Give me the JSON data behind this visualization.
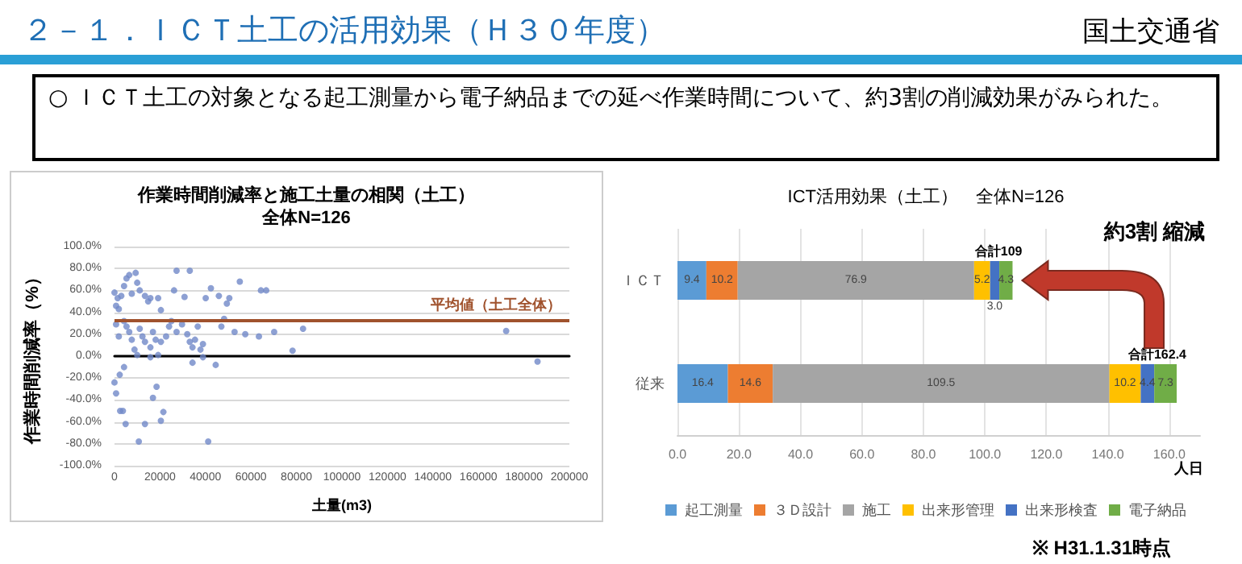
{
  "chart_data": [
    {
      "type": "other",
      "title": "２－１．ＩＣＴ土工の活用効果（Ｈ３０年度）",
      "annotations": [
        "国土交通省",
        "○ ＩＣＴ土工の対象となる起工測量から電子納品までの延べ作業時間について、約3割の削減効果がみられた。"
      ]
    },
    {
      "type": "scatter",
      "title": "作業時間削減率と施工土量の相関（土工）",
      "subtitle": "全体N=126",
      "xlabel": "土量(m3)",
      "ylabel": "作業時間削減率（%）",
      "color": "#7088c8",
      "marker": "circle",
      "grid": "y",
      "legend": false,
      "xlim": [
        0,
        200000
      ],
      "xticks": [
        0,
        20000,
        40000,
        60000,
        80000,
        100000,
        120000,
        140000,
        160000,
        180000,
        200000
      ],
      "ylim": [
        -100,
        100
      ],
      "yticks": [
        {
          "value": -100,
          "label": "-100.0%"
        },
        {
          "value": -80,
          "label": "-80.0%"
        },
        {
          "value": -60,
          "label": "-60.0%"
        },
        {
          "value": -40,
          "label": "-40.0%"
        },
        {
          "value": -20,
          "label": "-20.0%"
        },
        {
          "value": 0,
          "label": "0.0%"
        },
        {
          "value": 20,
          "label": "20.0%"
        },
        {
          "value": 40,
          "label": "40.0%"
        },
        {
          "value": 60,
          "label": "60.0%"
        },
        {
          "value": 80,
          "label": "80.0%"
        },
        {
          "value": 100,
          "label": "100.0%"
        }
      ],
      "ref_lines": [
        {
          "axis": "y",
          "value": 33,
          "label": "平均値（土工全体）",
          "color": "#a0522d"
        }
      ],
      "x": [
        0,
        700,
        1900,
        1400,
        3000,
        4200,
        5300,
        6500,
        9300,
        10000,
        7600,
        11100,
        13400,
        14800,
        15800,
        27300,
        33100,
        26200,
        30800,
        20400,
        19200,
        700,
        1900,
        4200,
        5300,
        6500,
        7600,
        8800,
        11100,
        12300,
        13400,
        15800,
        16900,
        18100,
        20400,
        22700,
        24000,
        25000,
        27300,
        29700,
        32000,
        33100,
        34300,
        35400,
        36600,
        37800,
        38900,
        42400,
        40100,
        45900,
        49400,
        50500,
        55100,
        64400,
        66700,
        52800,
        57500,
        63500,
        70200,
        82900,
        78300,
        44500,
        48200,
        47000,
        172200,
        186000,
        0,
        700,
        2500,
        3700,
        4900,
        10700,
        13400,
        16900,
        18500,
        21500,
        20400,
        41200,
        2300,
        4200,
        34300,
        15800,
        19200,
        10000,
        38900
      ],
      "values": [
        58,
        46,
        43,
        53,
        55,
        64,
        71,
        74,
        76,
        67,
        57,
        60,
        55,
        50,
        53,
        78,
        78,
        60,
        54,
        42,
        53,
        29,
        18,
        32,
        27,
        22,
        15,
        6,
        25,
        18,
        13,
        8,
        22,
        15,
        13,
        18,
        27,
        32,
        22,
        29,
        20,
        13,
        8,
        15,
        27,
        6,
        11,
        62,
        53,
        55,
        48,
        53,
        68,
        60,
        60,
        22,
        20,
        18,
        22,
        25,
        5,
        -8,
        34,
        27,
        23,
        -5,
        -24,
        -34,
        -50,
        -50,
        -62,
        -78,
        -62,
        -38,
        -28,
        -51,
        -59,
        -78,
        -17,
        -10,
        -6,
        -1,
        1,
        1,
        -1
      ]
    },
    {
      "type": "bar",
      "orientation": "horizontal",
      "stacked": true,
      "title": "ICT活用効果（土工）　全体N=126",
      "xlabel": "人日",
      "legend": "bottom",
      "grid": "x",
      "categories": [
        "ＩＣＴ",
        "従来"
      ],
      "xlim": [
        0,
        170
      ],
      "xticks": [
        {
          "value": 0,
          "label": "0.0"
        },
        {
          "value": 20,
          "label": "20.0"
        },
        {
          "value": 40,
          "label": "40.0"
        },
        {
          "value": 60,
          "label": "60.0"
        },
        {
          "value": 80,
          "label": "80.0"
        },
        {
          "value": 100,
          "label": "100.0"
        },
        {
          "value": 120,
          "label": "120.0"
        },
        {
          "value": 140,
          "label": "140.0"
        },
        {
          "value": 160,
          "label": "160.0"
        }
      ],
      "series": [
        {
          "name": "起工測量",
          "color": "#5b9bd5",
          "values": [
            9.4,
            16.4
          ],
          "value_labels": [
            "9.4",
            "16.4"
          ]
        },
        {
          "name": "３Ｄ設計",
          "color": "#ed7d31",
          "values": [
            10.2,
            14.6
          ],
          "value_labels": [
            "10.2",
            "14.6"
          ]
        },
        {
          "name": "施工",
          "color": "#a5a5a5",
          "values": [
            76.9,
            109.5
          ],
          "value_labels": [
            "76.9",
            "109.5"
          ]
        },
        {
          "name": "出来形管理",
          "color": "#ffc000",
          "values": [
            5.2,
            10.2
          ],
          "value_labels": [
            "5.2",
            "10.2"
          ]
        },
        {
          "name": "出来形検査",
          "color": "#4472c4",
          "values": [
            3.0,
            4.4
          ],
          "value_labels": [
            "3.0",
            "4.4"
          ]
        },
        {
          "name": "電子納品",
          "color": "#70ad47",
          "values": [
            4.3,
            7.3
          ],
          "value_labels": [
            "4.3",
            "7.3"
          ]
        }
      ],
      "totals": [
        "合計109",
        "合計162.4"
      ],
      "annotations": [
        "約3割 縮減",
        "※ H31.1.31時点"
      ]
    }
  ]
}
